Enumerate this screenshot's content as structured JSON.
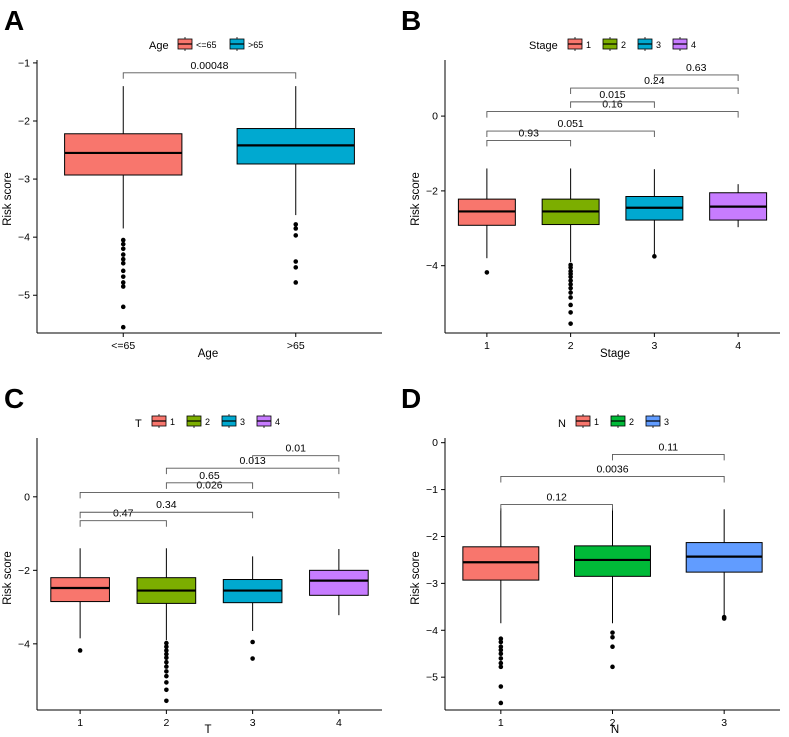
{
  "chart_data": [
    {
      "type": "box",
      "panel": "A",
      "xlabel": "Age",
      "ylabel": "Risk score",
      "legend_title": "Age",
      "ylim": [
        -5.65,
        -0.95
      ],
      "yticks": [
        -5,
        -4,
        -3,
        -2,
        -1
      ],
      "ytick_labels": [
        "−5",
        "−4",
        "−3",
        "−2",
        "−1"
      ],
      "groups": [
        {
          "name": "<=65",
          "color": "#F8766D",
          "q1": -2.93,
          "median": -2.55,
          "q3": -2.22,
          "whisker_low": -3.85,
          "whisker_high": -1.4,
          "outliers": [
            -4.05,
            -4.12,
            -4.2,
            -4.3,
            -4.38,
            -4.45,
            -4.58,
            -4.68,
            -4.78,
            -4.85,
            -5.2,
            -5.55
          ]
        },
        {
          "name": ">65",
          "color": "#00A9D0",
          "q1": -2.74,
          "median": -2.42,
          "q3": -2.13,
          "whisker_low": -3.62,
          "whisker_high": -1.4,
          "outliers": [
            -3.78,
            -3.85,
            -3.97,
            -4.42,
            -4.52,
            -4.78
          ]
        }
      ],
      "comparisons": [
        {
          "from": 0,
          "to": 1,
          "label": "0.00048",
          "y": -1.17
        }
      ]
    },
    {
      "type": "box",
      "panel": "B",
      "xlabel": "Stage",
      "ylabel": "Risk score",
      "legend_title": "Stage",
      "ylim": [
        -5.8,
        1.5
      ],
      "yticks": [
        -4,
        -2,
        0
      ],
      "ytick_labels": [
        "−4",
        "−2",
        "0"
      ],
      "groups": [
        {
          "name": "1",
          "color": "#F8766D",
          "q1": -2.92,
          "median": -2.55,
          "q3": -2.22,
          "whisker_low": -3.8,
          "whisker_high": -1.4,
          "outliers": [
            -4.18
          ]
        },
        {
          "name": "2",
          "color": "#7CAE00",
          "q1": -2.9,
          "median": -2.55,
          "q3": -2.22,
          "whisker_low": -3.9,
          "whisker_high": -1.4,
          "outliers": [
            -3.98,
            -4.05,
            -4.15,
            -4.22,
            -4.3,
            -4.4,
            -4.5,
            -4.6,
            -4.72,
            -4.85,
            -5.05,
            -5.25,
            -5.55
          ]
        },
        {
          "name": "3",
          "color": "#00A9D0",
          "q1": -2.78,
          "median": -2.45,
          "q3": -2.15,
          "whisker_low": -3.7,
          "whisker_high": -1.42,
          "outliers": [
            -3.75
          ]
        },
        {
          "name": "4",
          "color": "#C77CFF",
          "q1": -2.78,
          "median": -2.42,
          "q3": -2.05,
          "whisker_low": -2.97,
          "whisker_high": -1.82,
          "outliers": []
        }
      ],
      "comparisons": [
        {
          "from": 0,
          "to": 1,
          "label": "0.93",
          "y": -0.65
        },
        {
          "from": 0,
          "to": 2,
          "label": "0.051",
          "y": -0.4
        },
        {
          "from": 0,
          "to": 3,
          "label": "0.16",
          "y": 0.12
        },
        {
          "from": 1,
          "to": 2,
          "label": "0.015",
          "y": 0.38
        },
        {
          "from": 1,
          "to": 3,
          "label": "0.24",
          "y": 0.75
        },
        {
          "from": 2,
          "to": 3,
          "label": "0.63",
          "y": 1.1
        }
      ]
    },
    {
      "type": "box",
      "panel": "C",
      "xlabel": "T",
      "ylabel": "Risk score",
      "legend_title": "T",
      "ylim": [
        -5.8,
        1.6
      ],
      "yticks": [
        -4,
        -2,
        0
      ],
      "ytick_labels": [
        "−4",
        "−2",
        "0"
      ],
      "groups": [
        {
          "name": "1",
          "color": "#F8766D",
          "q1": -2.85,
          "median": -2.48,
          "q3": -2.2,
          "whisker_low": -3.85,
          "whisker_high": -1.4,
          "outliers": [
            -4.18
          ]
        },
        {
          "name": "2",
          "color": "#7CAE00",
          "q1": -2.9,
          "median": -2.55,
          "q3": -2.2,
          "whisker_low": -3.9,
          "whisker_high": -1.4,
          "outliers": [
            -3.98,
            -4.08,
            -4.18,
            -4.28,
            -4.38,
            -4.5,
            -4.62,
            -4.75,
            -4.88,
            -5.05,
            -5.25,
            -5.55
          ]
        },
        {
          "name": "3",
          "color": "#00A9D0",
          "q1": -2.88,
          "median": -2.55,
          "q3": -2.25,
          "whisker_low": -3.65,
          "whisker_high": -1.62,
          "outliers": [
            -3.95,
            -4.4
          ]
        },
        {
          "name": "4",
          "color": "#C77CFF",
          "q1": -2.68,
          "median": -2.28,
          "q3": -2.0,
          "whisker_low": -3.22,
          "whisker_high": -1.42,
          "outliers": []
        }
      ],
      "comparisons": [
        {
          "from": 0,
          "to": 1,
          "label": "0.47",
          "y": -0.65
        },
        {
          "from": 0,
          "to": 2,
          "label": "0.34",
          "y": -0.42
        },
        {
          "from": 0,
          "to": 3,
          "label": "0.026",
          "y": 0.12
        },
        {
          "from": 1,
          "to": 2,
          "label": "0.65",
          "y": 0.38
        },
        {
          "from": 1,
          "to": 3,
          "label": "0.013",
          "y": 0.78
        },
        {
          "from": 2,
          "to": 3,
          "label": "0.01",
          "y": 1.12
        }
      ]
    },
    {
      "type": "box",
      "panel": "D",
      "xlabel": "N",
      "ylabel": "Risk score",
      "legend_title": "N",
      "ylim": [
        -5.7,
        0.1
      ],
      "yticks": [
        -5,
        -4,
        -3,
        -2,
        -1,
        0
      ],
      "ytick_labels": [
        "−5",
        "−4",
        "−3",
        "−2",
        "−1",
        "0"
      ],
      "groups": [
        {
          "name": "1",
          "color": "#F8766D",
          "q1": -2.93,
          "median": -2.55,
          "q3": -2.22,
          "whisker_low": -3.85,
          "whisker_high": -1.4,
          "outliers": [
            -4.18,
            -4.25,
            -4.35,
            -4.42,
            -4.5,
            -4.6,
            -4.7,
            -4.78,
            -5.2,
            -5.55
          ]
        },
        {
          "name": "2",
          "color": "#00BA38",
          "q1": -2.85,
          "median": -2.5,
          "q3": -2.2,
          "whisker_low": -3.85,
          "whisker_high": -1.4,
          "outliers": [
            -4.05,
            -4.15,
            -4.35,
            -4.78
          ]
        },
        {
          "name": "3",
          "color": "#619CFF",
          "q1": -2.76,
          "median": -2.43,
          "q3": -2.13,
          "whisker_low": -3.7,
          "whisker_high": -1.42,
          "outliers": [
            -3.72,
            -3.75
          ]
        }
      ],
      "comparisons": [
        {
          "from": 0,
          "to": 1,
          "label": "0.12",
          "y": -1.32
        },
        {
          "from": 0,
          "to": 2,
          "label": "0.0036",
          "y": -0.72
        },
        {
          "from": 1,
          "to": 2,
          "label": "0.11",
          "y": -0.25
        }
      ]
    }
  ]
}
